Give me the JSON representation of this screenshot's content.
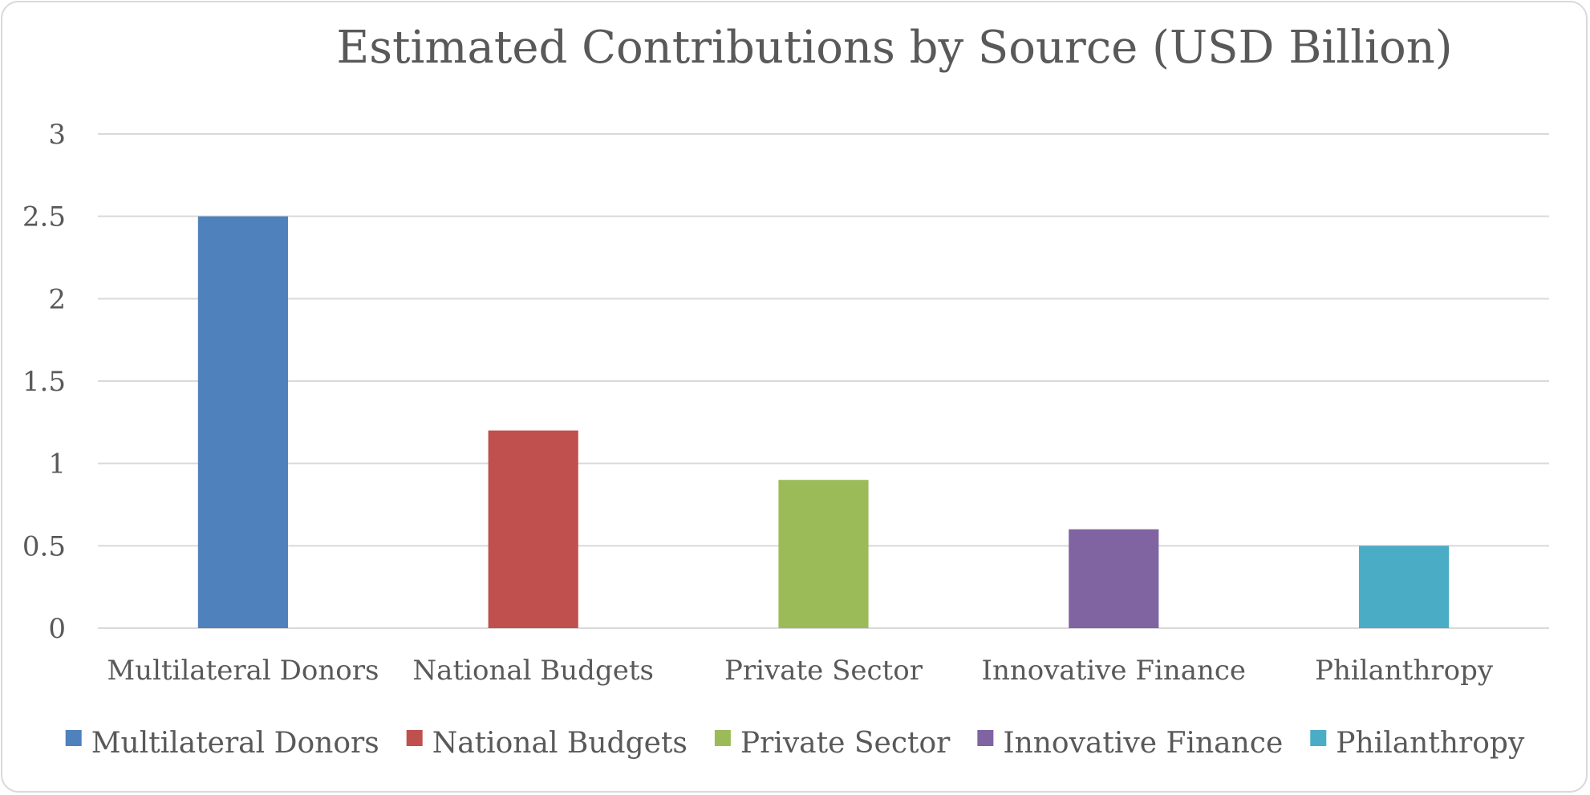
{
  "chart_data": {
    "type": "bar",
    "title": "Estimated Contributions by Source (USD Billion)",
    "xlabel": "",
    "ylabel": "",
    "categories": [
      "Multilateral Donors",
      "National Budgets",
      "Private Sector",
      "Innovative Finance",
      "Philanthropy"
    ],
    "values": [
      2.5,
      1.2,
      0.9,
      0.6,
      0.5
    ],
    "colors": [
      "#4f81bd",
      "#c0504d",
      "#9bbb59",
      "#8064a2",
      "#4bacc6"
    ],
    "ylim": [
      0,
      3
    ],
    "yticks": [
      "0",
      "0.5",
      "1",
      "1.5",
      "2",
      "2.5",
      "3"
    ],
    "grid": true,
    "legend": {
      "position": "bottom",
      "entries": [
        "Multilateral Donors",
        "National Budgets",
        "Private Sector",
        "Innovative Finance",
        "Philanthropy"
      ]
    }
  }
}
